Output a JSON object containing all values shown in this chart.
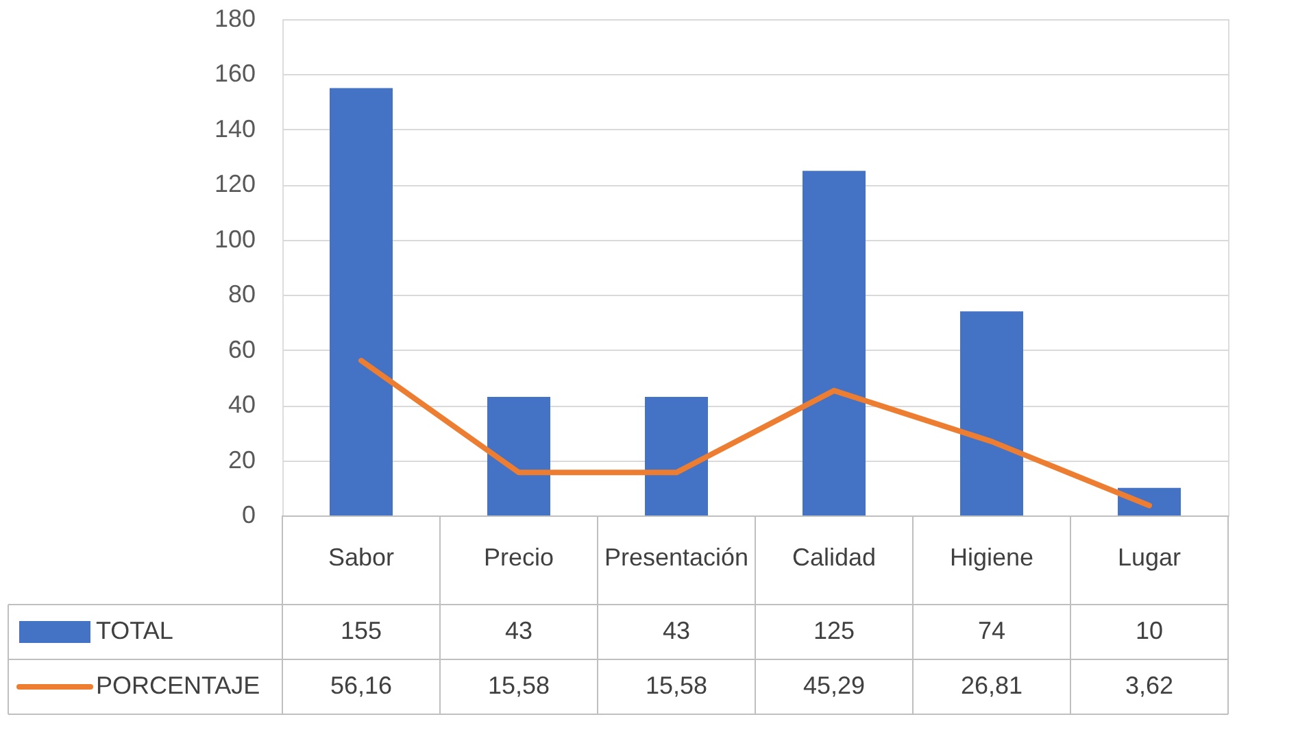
{
  "chart_data": {
    "type": "bar",
    "categories": [
      "Sabor",
      "Precio",
      "Presentación",
      "Calidad",
      "Higiene",
      "Lugar"
    ],
    "series": [
      {
        "name": "TOTAL",
        "color": "#4472c4",
        "values": [
          155,
          43,
          43,
          125,
          74,
          10
        ],
        "value_labels": [
          "155",
          "43",
          "43",
          "125",
          "74",
          "10"
        ]
      },
      {
        "name": "PORCENTAJE",
        "type": "line",
        "color": "#ed7d31",
        "values": [
          56.16,
          15.58,
          15.58,
          45.29,
          26.81,
          3.62
        ],
        "value_labels": [
          "56,16",
          "15,58",
          "15,58",
          "45,29",
          "26,81",
          "3,62"
        ]
      }
    ],
    "ylim": [
      0,
      180
    ],
    "yticks": [
      0,
      20,
      40,
      60,
      80,
      100,
      120,
      140,
      160,
      180
    ],
    "grid": "y",
    "legend": "bottom",
    "line_style": "solid",
    "marker": "none"
  }
}
